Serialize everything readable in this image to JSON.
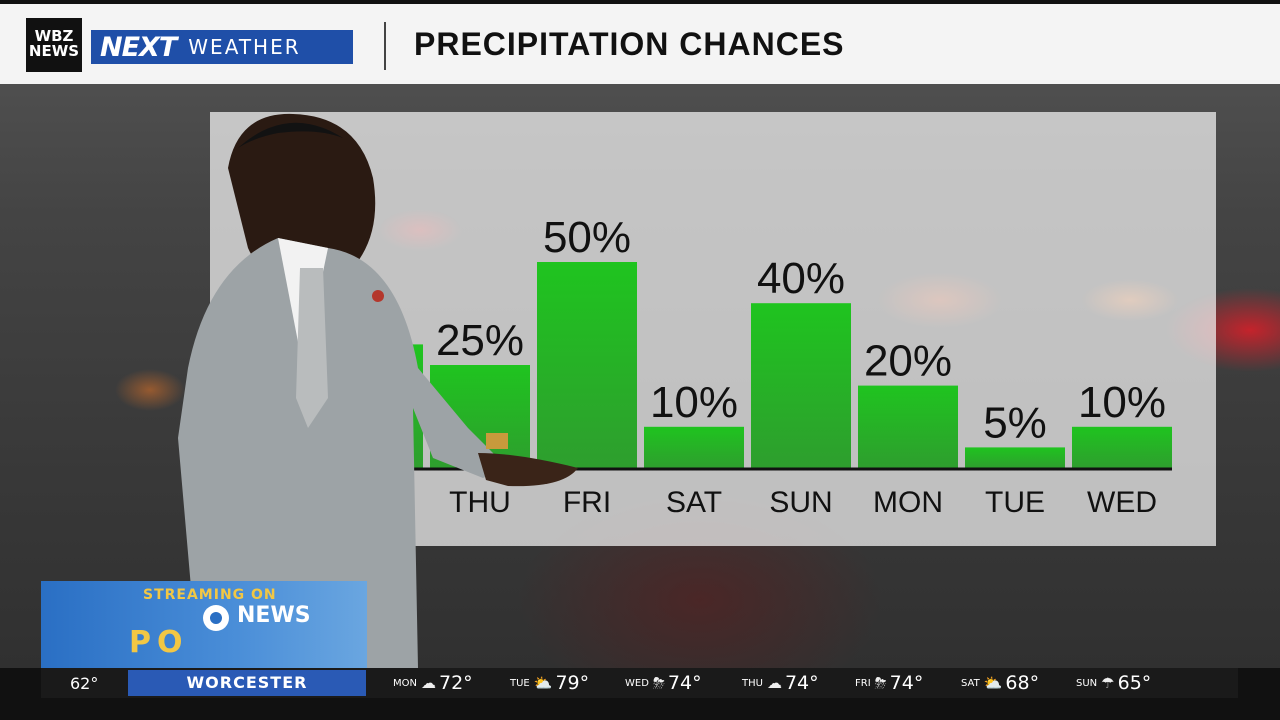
{
  "header": {
    "logo_line1": "WBZ",
    "logo_line2": "NEWS",
    "brand_next": "NEXT",
    "brand_weather": "WEATHER",
    "title": "PRECIPITATION CHANCES"
  },
  "chart_data": {
    "type": "bar",
    "title": "PRECIPITATION CHANCES",
    "xlabel": "",
    "ylabel": "",
    "ylim": [
      0,
      100
    ],
    "categories": [
      "",
      "THU",
      "FRI",
      "SAT",
      "SUN",
      "MON",
      "TUE",
      "WED"
    ],
    "values": [
      30,
      25,
      50,
      10,
      40,
      20,
      5,
      10
    ],
    "labels": [
      "%",
      "25%",
      "50%",
      "10%",
      "40%",
      "20%",
      "5%",
      "10%"
    ],
    "bar_color": "#2fb52f",
    "grid": false,
    "legend": "none"
  },
  "promo": {
    "line1": "STREAMING ON",
    "line2": "NEWS",
    "line3": "PO"
  },
  "ticker": {
    "current_temp": "62°",
    "city": "WORCESTER",
    "forecast": [
      {
        "day": "MON",
        "icon": "wind-rain-icon",
        "glyph": "☁",
        "temp": "72°"
      },
      {
        "day": "TUE",
        "icon": "partly-sunny-icon",
        "glyph": "⛅",
        "temp": "79°"
      },
      {
        "day": "WED",
        "icon": "thunderstorm-icon",
        "glyph": "⛈",
        "temp": "74°"
      },
      {
        "day": "THU",
        "icon": "cloudy-icon",
        "glyph": "☁",
        "temp": "74°"
      },
      {
        "day": "FRI",
        "icon": "thunderstorm-icon",
        "glyph": "⛈",
        "temp": "74°"
      },
      {
        "day": "SAT",
        "icon": "partly-sunny-icon",
        "glyph": "⛅",
        "temp": "68°"
      },
      {
        "day": "SUN",
        "icon": "rain-icon",
        "glyph": "☂",
        "temp": "65°"
      }
    ]
  }
}
